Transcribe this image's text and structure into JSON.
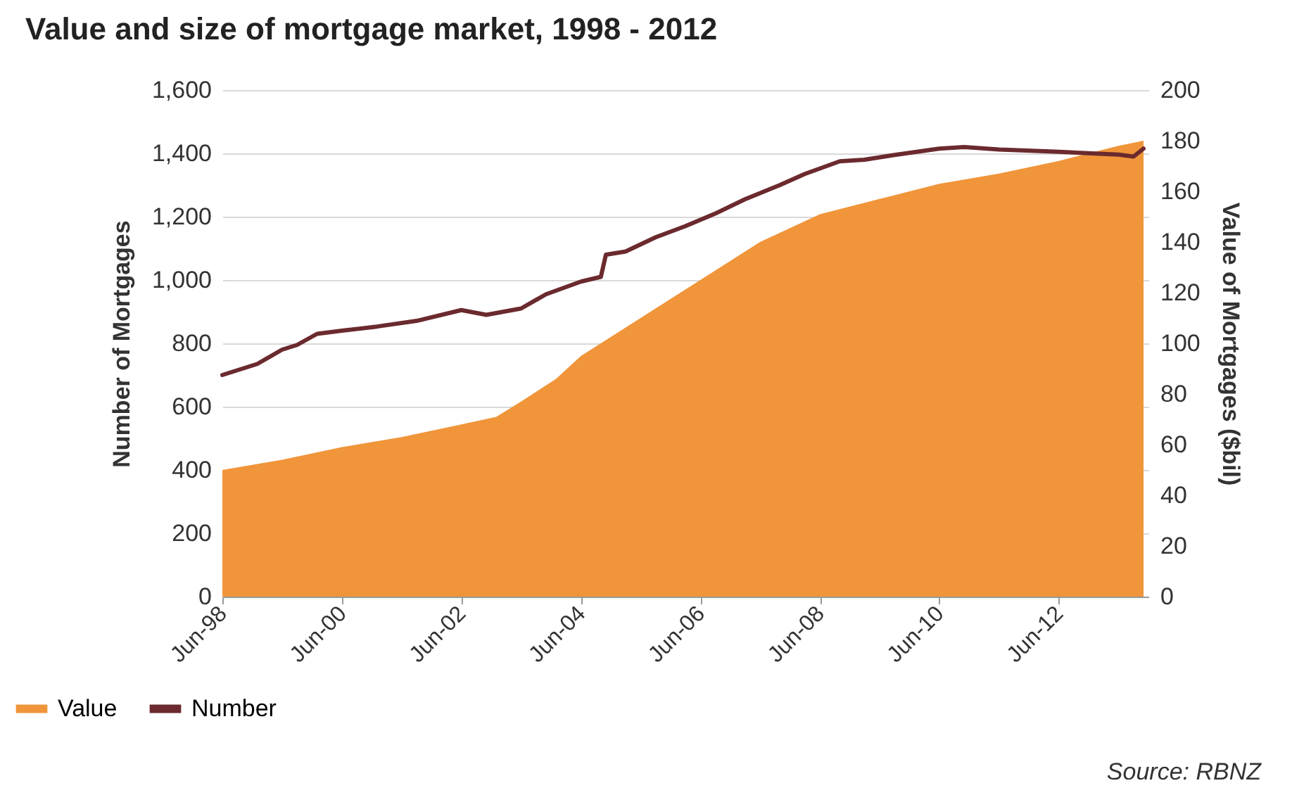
{
  "chart_data": {
    "type": "area",
    "title": "Value and size of mortgage market, 1998 - 2012",
    "ylabel": "Number of Mortgages",
    "y2label": "Value of Mortgages ($bil)",
    "annotations": [
      "Source: RBNZ"
    ],
    "xlim": [
      "1998-06",
      "2013-12"
    ],
    "xticks": [
      {
        "value": "1998-06",
        "label": "Jun-98"
      },
      {
        "value": "2000-06",
        "label": "Jun-00"
      },
      {
        "value": "2002-06",
        "label": "Jun-02"
      },
      {
        "value": "2004-06",
        "label": "Jun-04"
      },
      {
        "value": "2006-06",
        "label": "Jun-06"
      },
      {
        "value": "2008-06",
        "label": "Jun-08"
      },
      {
        "value": "2010-06",
        "label": "Jun-10"
      },
      {
        "value": "2012-06",
        "label": "Jun-12"
      }
    ],
    "ylim": [
      0,
      1600
    ],
    "yticks": [
      0,
      {
        "value": 200,
        "label": "200"
      },
      {
        "value": 400,
        "label": "400"
      },
      {
        "value": 600,
        "label": "600"
      },
      {
        "value": 800,
        "label": "800"
      },
      {
        "value": 1000,
        "label": "1,000"
      },
      {
        "value": 1200,
        "label": "1,200"
      },
      {
        "value": 1400,
        "label": "1,400"
      },
      {
        "value": 1600,
        "label": "1,600"
      }
    ],
    "y2lim": [
      0,
      200
    ],
    "y2ticks": [
      0,
      20,
      40,
      60,
      80,
      100,
      120,
      140,
      160,
      180,
      200
    ],
    "grid": "y",
    "legend": "bottom left",
    "series": [
      {
        "name": "Value",
        "axis": "y2",
        "color": "#f0953a",
        "x": [
          "1998-06",
          "1999-06",
          "2000-06",
          "2001-06",
          "2002-06",
          "2003-01",
          "2003-06",
          "2004-01",
          "2004-06",
          "2005-06",
          "2006-06",
          "2007-06",
          "2008-06",
          "2009-06",
          "2010-06",
          "2011-06",
          "2012-06",
          "2013-06",
          "2013-11"
        ],
        "values": [
          50,
          54,
          59,
          63,
          68,
          71,
          77,
          86,
          95,
          110,
          125,
          140,
          151,
          157,
          163,
          167,
          172,
          178,
          180
        ]
      },
      {
        "name": "Number",
        "type": "line",
        "color": "#6b2a2e",
        "x": [
          "1998-06",
          "1999-01",
          "1999-06",
          "1999-09",
          "2000-01",
          "2000-06",
          "2001-01",
          "2001-09",
          "2002-06",
          "2002-11",
          "2003-06",
          "2003-11",
          "2004-06",
          "2004-10",
          "2004-11",
          "2005-03",
          "2005-09",
          "2006-03",
          "2006-09",
          "2007-03",
          "2007-10",
          "2008-03",
          "2008-10",
          "2009-03",
          "2009-09",
          "2010-06",
          "2010-11",
          "2011-06",
          "2012-06",
          "2013-06",
          "2013-09",
          "2013-11"
        ],
        "values": [
          700,
          735,
          780,
          795,
          830,
          840,
          853,
          871,
          905,
          890,
          910,
          955,
          995,
          1010,
          1080,
          1090,
          1135,
          1170,
          1210,
          1255,
          1300,
          1335,
          1375,
          1380,
          1395,
          1415,
          1420,
          1412,
          1405,
          1396,
          1390,
          1415
        ]
      }
    ]
  }
}
